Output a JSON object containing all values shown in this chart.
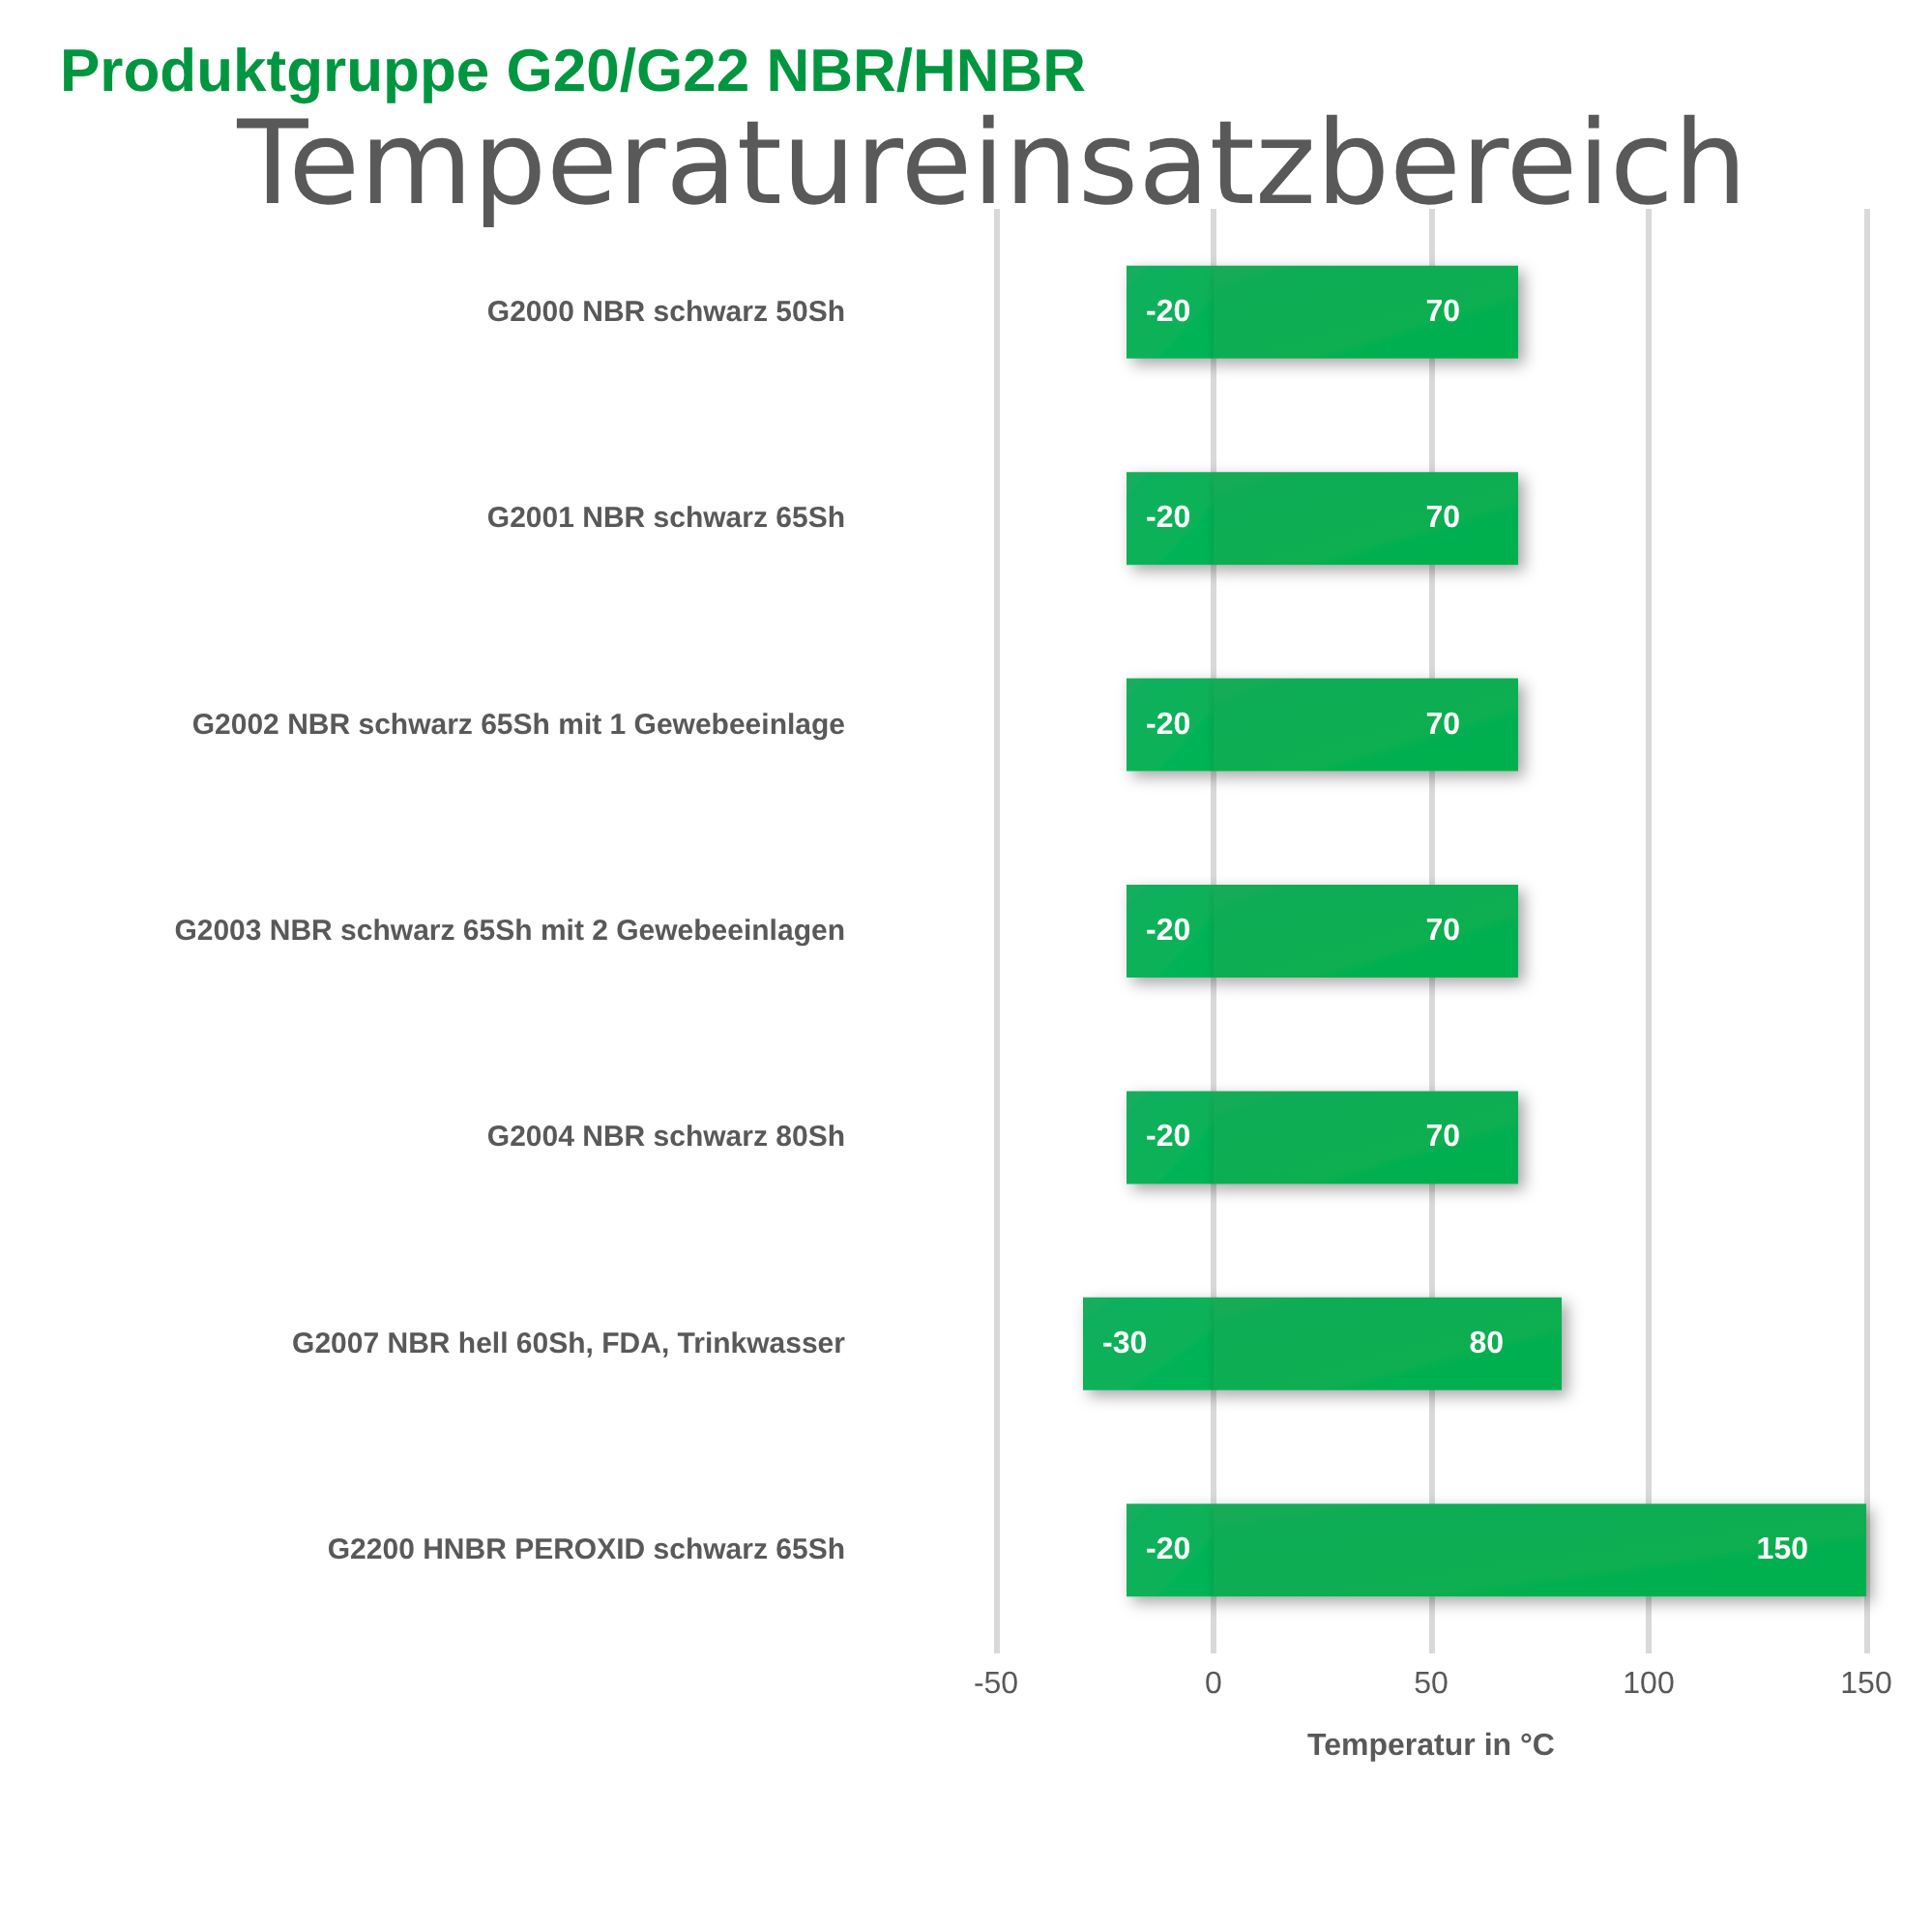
{
  "chart_data": {
    "type": "bar",
    "orientation": "horizontal",
    "stacked": true,
    "title": "Produktgruppe G20/G22 NBR/HNBR",
    "subtitle": "Temperatureinsatzbereich",
    "xlabel": "Temperatur in °C",
    "categories": [
      "G2000 NBR schwarz 50Sh",
      "G2001 NBR schwarz 65Sh",
      "G2002 NBR schwarz 65Sh mit 1 Gewebeeinlage",
      "G2003 NBR schwarz 65Sh mit 2 Gewebeeinlagen",
      "G2004 NBR schwarz 80Sh",
      "G2007 NBR hell 60Sh, FDA, Trinkwasser",
      "G2200 HNBR PEROXID schwarz 65Sh"
    ],
    "series": [
      {
        "color": "#00a84f",
        "values": [
          -20,
          -20,
          -20,
          -20,
          -20,
          -30,
          -20
        ]
      },
      {
        "color": "#00a448",
        "values": [
          70,
          70,
          70,
          70,
          70,
          80,
          150
        ]
      }
    ],
    "xlim": [
      -50,
      150
    ],
    "xticks": [
      -50,
      0,
      50,
      100,
      150
    ],
    "grid": "x",
    "data_labels": true
  }
}
